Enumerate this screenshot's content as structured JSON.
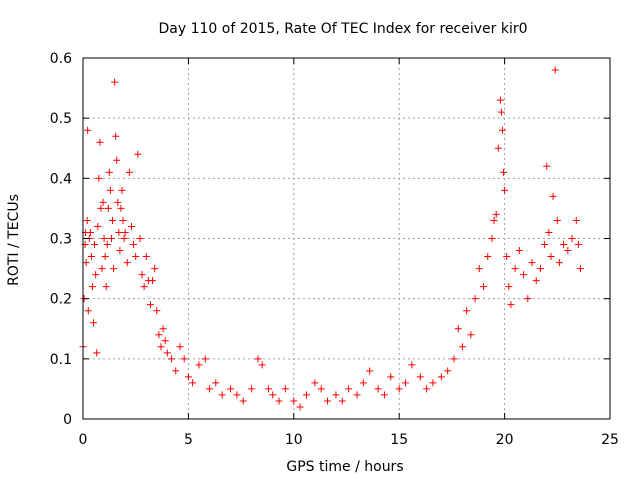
{
  "chart_data": {
    "type": "scatter",
    "title": "Day 110 of 2015, Rate Of TEC Index for receiver kir0",
    "xlabel": "GPS time / hours",
    "ylabel": "ROTI / TECUs",
    "xlim": [
      0,
      25
    ],
    "ylim": [
      0,
      0.6
    ],
    "x_ticks": [
      "0",
      "5",
      "10",
      "15",
      "20",
      "25"
    ],
    "y_ticks": [
      "0",
      "0.1",
      "0.2",
      "0.3",
      "0.4",
      "0.5",
      "0.6"
    ],
    "grid": true,
    "marker": "+",
    "color": "#ff0000",
    "series": [
      {
        "name": "ROTI",
        "points": [
          [
            0.0,
            0.12
          ],
          [
            0.05,
            0.2
          ],
          [
            0.1,
            0.29
          ],
          [
            0.12,
            0.31
          ],
          [
            0.15,
            0.26
          ],
          [
            0.2,
            0.33
          ],
          [
            0.22,
            0.48
          ],
          [
            0.25,
            0.18
          ],
          [
            0.3,
            0.3
          ],
          [
            0.35,
            0.31
          ],
          [
            0.4,
            0.27
          ],
          [
            0.45,
            0.22
          ],
          [
            0.5,
            0.16
          ],
          [
            0.55,
            0.29
          ],
          [
            0.6,
            0.24
          ],
          [
            0.65,
            0.11
          ],
          [
            0.7,
            0.32
          ],
          [
            0.75,
            0.4
          ],
          [
            0.8,
            0.46
          ],
          [
            0.85,
            0.35
          ],
          [
            0.9,
            0.25
          ],
          [
            0.95,
            0.36
          ],
          [
            1.0,
            0.3
          ],
          [
            1.05,
            0.27
          ],
          [
            1.1,
            0.22
          ],
          [
            1.15,
            0.29
          ],
          [
            1.2,
            0.35
          ],
          [
            1.25,
            0.41
          ],
          [
            1.3,
            0.38
          ],
          [
            1.35,
            0.3
          ],
          [
            1.4,
            0.33
          ],
          [
            1.45,
            0.25
          ],
          [
            1.5,
            0.56
          ],
          [
            1.55,
            0.47
          ],
          [
            1.6,
            0.43
          ],
          [
            1.65,
            0.36
          ],
          [
            1.7,
            0.31
          ],
          [
            1.75,
            0.28
          ],
          [
            1.8,
            0.35
          ],
          [
            1.85,
            0.38
          ],
          [
            1.9,
            0.33
          ],
          [
            1.95,
            0.3
          ],
          [
            2.0,
            0.31
          ],
          [
            2.1,
            0.26
          ],
          [
            2.2,
            0.41
          ],
          [
            2.3,
            0.32
          ],
          [
            2.4,
            0.29
          ],
          [
            2.5,
            0.27
          ],
          [
            2.6,
            0.44
          ],
          [
            2.7,
            0.3
          ],
          [
            2.8,
            0.24
          ],
          [
            2.9,
            0.22
          ],
          [
            3.0,
            0.27
          ],
          [
            3.1,
            0.23
          ],
          [
            3.2,
            0.19
          ],
          [
            3.3,
            0.23
          ],
          [
            3.4,
            0.25
          ],
          [
            3.5,
            0.18
          ],
          [
            3.6,
            0.14
          ],
          [
            3.7,
            0.12
          ],
          [
            3.8,
            0.15
          ],
          [
            3.9,
            0.13
          ],
          [
            4.0,
            0.11
          ],
          [
            4.2,
            0.1
          ],
          [
            4.4,
            0.08
          ],
          [
            4.6,
            0.12
          ],
          [
            4.8,
            0.1
          ],
          [
            5.0,
            0.07
          ],
          [
            5.2,
            0.06
          ],
          [
            5.5,
            0.09
          ],
          [
            5.8,
            0.1
          ],
          [
            6.0,
            0.05
          ],
          [
            6.3,
            0.06
          ],
          [
            6.6,
            0.04
          ],
          [
            7.0,
            0.05
          ],
          [
            7.3,
            0.04
          ],
          [
            7.6,
            0.03
          ],
          [
            8.0,
            0.05
          ],
          [
            8.3,
            0.1
          ],
          [
            8.5,
            0.09
          ],
          [
            8.8,
            0.05
          ],
          [
            9.0,
            0.04
          ],
          [
            9.3,
            0.03
          ],
          [
            9.6,
            0.05
          ],
          [
            10.0,
            0.03
          ],
          [
            10.3,
            0.02
          ],
          [
            10.6,
            0.04
          ],
          [
            11.0,
            0.06
          ],
          [
            11.3,
            0.05
          ],
          [
            11.6,
            0.03
          ],
          [
            12.0,
            0.04
          ],
          [
            12.3,
            0.03
          ],
          [
            12.6,
            0.05
          ],
          [
            13.0,
            0.04
          ],
          [
            13.3,
            0.06
          ],
          [
            13.6,
            0.08
          ],
          [
            14.0,
            0.05
          ],
          [
            14.3,
            0.04
          ],
          [
            14.6,
            0.07
          ],
          [
            15.0,
            0.05
          ],
          [
            15.3,
            0.06
          ],
          [
            15.6,
            0.09
          ],
          [
            16.0,
            0.07
          ],
          [
            16.3,
            0.05
          ],
          [
            16.6,
            0.06
          ],
          [
            17.0,
            0.07
          ],
          [
            17.3,
            0.08
          ],
          [
            17.6,
            0.1
          ],
          [
            17.8,
            0.15
          ],
          [
            18.0,
            0.12
          ],
          [
            18.2,
            0.18
          ],
          [
            18.4,
            0.14
          ],
          [
            18.6,
            0.2
          ],
          [
            18.8,
            0.25
          ],
          [
            19.0,
            0.22
          ],
          [
            19.2,
            0.27
          ],
          [
            19.4,
            0.3
          ],
          [
            19.5,
            0.33
          ],
          [
            19.6,
            0.34
          ],
          [
            19.7,
            0.45
          ],
          [
            19.8,
            0.53
          ],
          [
            19.85,
            0.51
          ],
          [
            19.9,
            0.48
          ],
          [
            19.95,
            0.41
          ],
          [
            20.0,
            0.38
          ],
          [
            20.1,
            0.27
          ],
          [
            20.2,
            0.22
          ],
          [
            20.3,
            0.19
          ],
          [
            20.5,
            0.25
          ],
          [
            20.7,
            0.28
          ],
          [
            20.9,
            0.24
          ],
          [
            21.1,
            0.2
          ],
          [
            21.3,
            0.26
          ],
          [
            21.5,
            0.23
          ],
          [
            21.7,
            0.25
          ],
          [
            21.9,
            0.29
          ],
          [
            22.0,
            0.42
          ],
          [
            22.1,
            0.31
          ],
          [
            22.2,
            0.27
          ],
          [
            22.3,
            0.37
          ],
          [
            22.4,
            0.58
          ],
          [
            22.5,
            0.33
          ],
          [
            22.6,
            0.26
          ],
          [
            22.8,
            0.29
          ],
          [
            23.0,
            0.28
          ],
          [
            23.2,
            0.3
          ],
          [
            23.4,
            0.33
          ],
          [
            23.5,
            0.29
          ],
          [
            23.6,
            0.25
          ]
        ]
      }
    ]
  }
}
